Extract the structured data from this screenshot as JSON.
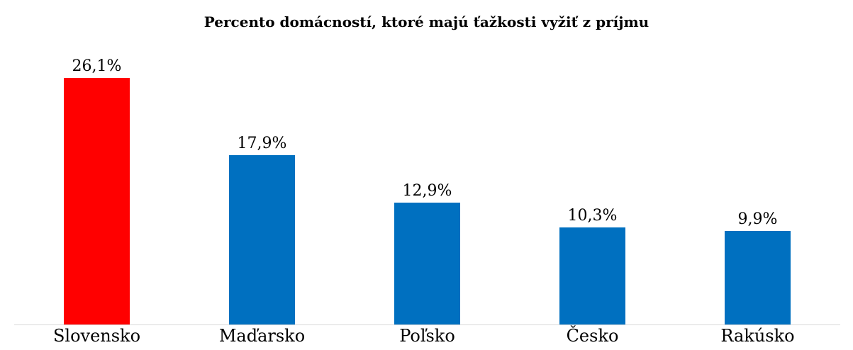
{
  "chart_data": {
    "type": "bar",
    "title": "Percento domácností, ktoré majú ťažkosti vyžiť z príjmu",
    "categories": [
      "Slovensko",
      "Maďarsko",
      "Poľsko",
      "Česko",
      "Rakúsko"
    ],
    "values": [
      26.1,
      17.9,
      12.9,
      10.3,
      9.9
    ],
    "value_labels": [
      "26,1%",
      "17,9%",
      "12,9%",
      "10,3%",
      "9,9%"
    ],
    "bar_colors": [
      "#ff0000",
      "#0070c0",
      "#0070c0",
      "#0070c0",
      "#0070c0"
    ],
    "highlight_color": "#ff0000",
    "series_color": "#0070c0",
    "axis_line_color": "#d9d9d9",
    "unit": "%",
    "xlabel": "",
    "ylabel": "",
    "ylim": [
      0,
      30
    ],
    "grid": false,
    "legend": "none",
    "value_label_position": "above-bar",
    "highlighted_category": "Slovensko"
  }
}
